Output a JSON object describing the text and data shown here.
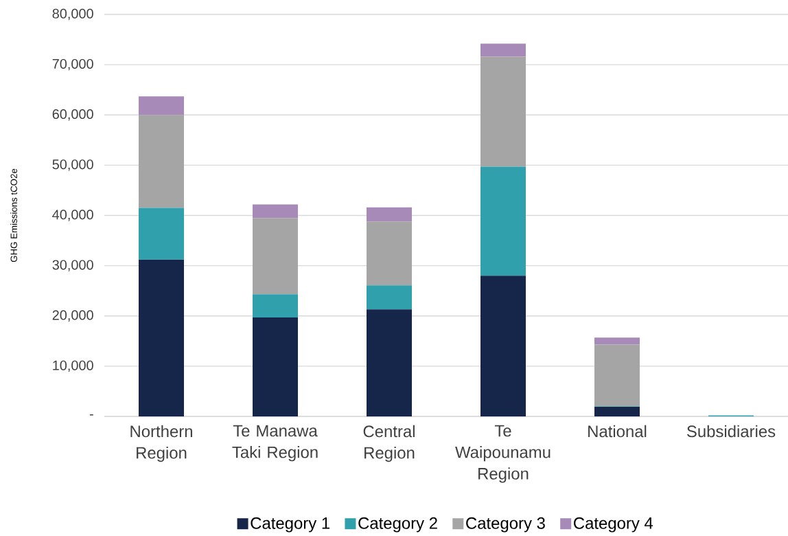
{
  "chart_data": {
    "type": "bar",
    "stacked": true,
    "ylabel": "GHG Emissions tCO2e",
    "categories": [
      "Northern Region",
      "Te Manawa Taki Region",
      "Central Region",
      "Te Waipounamu Region",
      "National",
      "Subsidiaries"
    ],
    "series": [
      {
        "name": "Category 1",
        "color": "#16264a",
        "values": [
          31200,
          19700,
          21300,
          28000,
          1900,
          0
        ]
      },
      {
        "name": "Category 2",
        "color": "#2fa0ac",
        "values": [
          10300,
          4600,
          4800,
          21700,
          100,
          200
        ]
      },
      {
        "name": "Category 3",
        "color": "#a5a5a5",
        "values": [
          18500,
          15200,
          12700,
          21900,
          12300,
          0
        ]
      },
      {
        "name": "Category 4",
        "color": "#a78ab8",
        "values": [
          3700,
          2700,
          2800,
          2600,
          1400,
          0
        ]
      }
    ],
    "ylim": [
      0,
      80000
    ],
    "yticks": [
      {
        "value": 0,
        "label": "-"
      },
      {
        "value": 10000,
        "label": "10,000"
      },
      {
        "value": 20000,
        "label": "20,000"
      },
      {
        "value": 30000,
        "label": "30,000"
      },
      {
        "value": 40000,
        "label": "40,000"
      },
      {
        "value": 50000,
        "label": "50,000"
      },
      {
        "value": 60000,
        "label": "60,000"
      },
      {
        "value": 70000,
        "label": "70,000"
      },
      {
        "value": 80000,
        "label": "80,000"
      }
    ],
    "grid": "y",
    "legend": "bottom"
  }
}
